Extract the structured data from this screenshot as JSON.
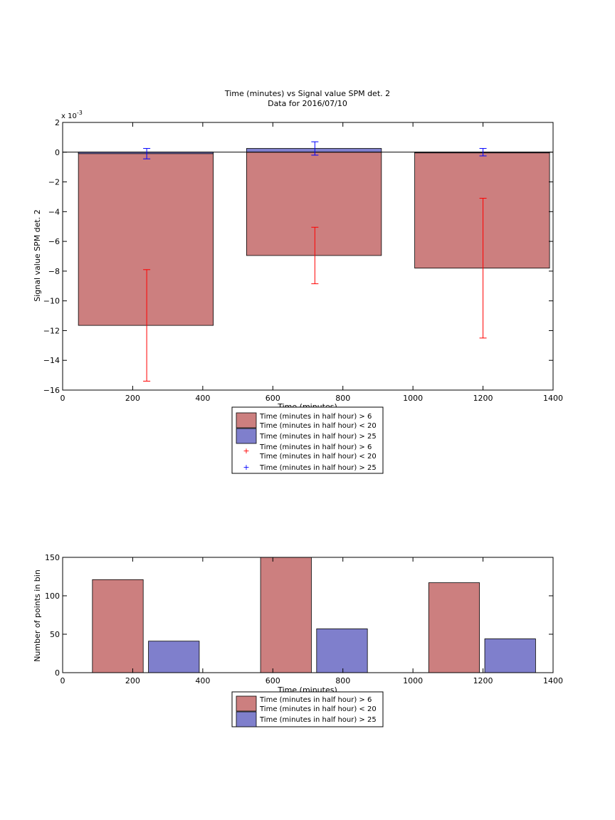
{
  "chart_data": [
    {
      "type": "bar",
      "title": "Time (minutes) vs Signal value SPM det. 2",
      "subtitle": "Data for 2016/07/10",
      "xlabel": "Time (minutes)",
      "ylabel": "Signal value SPM det. 2",
      "exponent_label": "x 10",
      "exponent_power": "-3",
      "xlim": [
        0,
        1400
      ],
      "ylim": [
        -16,
        2
      ],
      "y_unit_scale": 0.001,
      "xticks": [
        0,
        200,
        400,
        600,
        800,
        1000,
        1200,
        1400
      ],
      "yticks": [
        -16,
        -14,
        -12,
        -10,
        -8,
        -6,
        -4,
        -2,
        0,
        2
      ],
      "zero_line": true,
      "grid": false,
      "legend_position": "below",
      "bar_series": [
        {
          "name": "Time (minutes in half hour) > 6\nTime (minutes in half hour) < 20",
          "color": "#cc7f7f",
          "bars": [
            {
              "x_start": 45,
              "x_end": 430,
              "value": -11.65
            },
            {
              "x_start": 525,
              "x_end": 910,
              "value": -6.95
            },
            {
              "x_start": 1005,
              "x_end": 1390,
              "value": -7.8
            }
          ]
        },
        {
          "name": "Time (minutes in half hour) > 25",
          "color": "#7f7fcc",
          "bars": [
            {
              "x_start": 45,
              "x_end": 430,
              "value": -0.1
            },
            {
              "x_start": 525,
              "x_end": 910,
              "value": 0.25
            },
            {
              "x_start": 1005,
              "x_end": 1390,
              "value": -0.05
            }
          ]
        }
      ],
      "errorbar_series": [
        {
          "name": "Time (minutes in half hour) > 6\nTime (minutes in half hour) < 20",
          "color": "#ff0000",
          "points": [
            {
              "x": 240,
              "y": -11.65,
              "low": -15.4,
              "high": -7.9
            },
            {
              "x": 720,
              "y": -6.95,
              "low": -8.85,
              "high": -5.05
            },
            {
              "x": 1200,
              "y": -7.8,
              "low": -12.5,
              "high": -3.1
            }
          ]
        },
        {
          "name": "Time (minutes in half hour) > 25",
          "color": "#0000ff",
          "points": [
            {
              "x": 240,
              "y": -0.1,
              "low": -0.45,
              "high": 0.25
            },
            {
              "x": 720,
              "y": 0.25,
              "low": -0.2,
              "high": 0.7
            },
            {
              "x": 1200,
              "y": 0.0,
              "low": -0.25,
              "high": 0.25
            }
          ]
        }
      ]
    },
    {
      "type": "bar",
      "xlabel": "Time (minutes)",
      "ylabel": "Number of points in bin",
      "xlim": [
        0,
        1400
      ],
      "ylim": [
        0,
        150
      ],
      "xticks": [
        0,
        200,
        400,
        600,
        800,
        1000,
        1200,
        1400
      ],
      "yticks": [
        0,
        50,
        100,
        150
      ],
      "grid": false,
      "legend_position": "below",
      "bar_series": [
        {
          "name": "Time (minutes in half hour) > 6\nTime (minutes in half hour) < 20",
          "color": "#cc7f7f",
          "bars": [
            {
              "x_start": 85,
              "x_end": 230,
              "value": 121
            },
            {
              "x_start": 565,
              "x_end": 710,
              "value": 150
            },
            {
              "x_start": 1045,
              "x_end": 1190,
              "value": 117
            }
          ]
        },
        {
          "name": "Time (minutes in half hour) > 25",
          "color": "#7f7fcc",
          "bars": [
            {
              "x_start": 245,
              "x_end": 390,
              "value": 41
            },
            {
              "x_start": 725,
              "x_end": 870,
              "value": 57
            },
            {
              "x_start": 1205,
              "x_end": 1350,
              "value": 44
            }
          ]
        }
      ]
    }
  ]
}
